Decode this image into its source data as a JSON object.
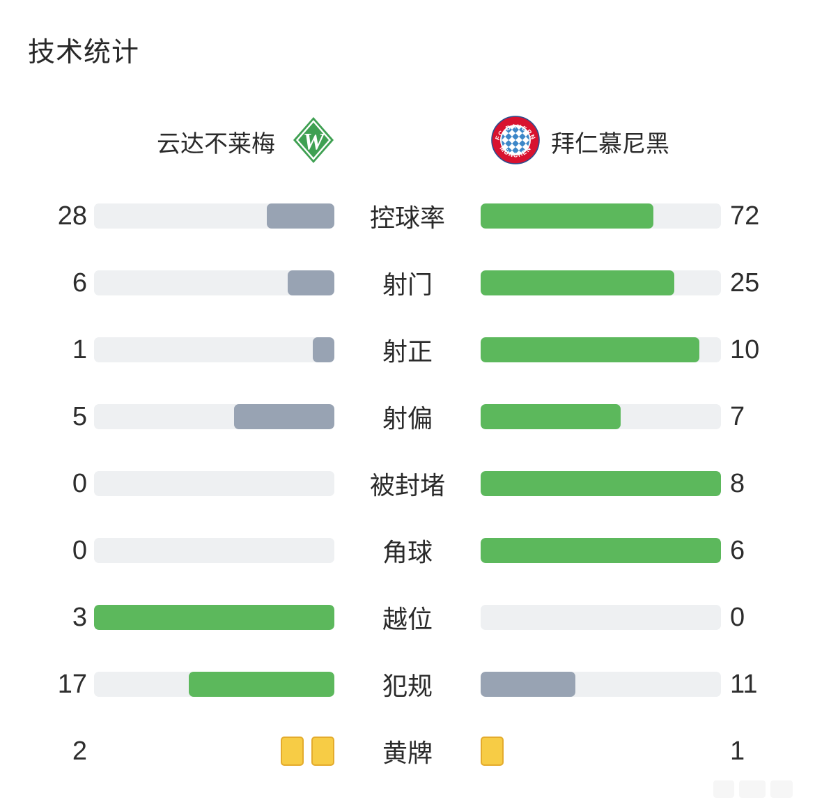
{
  "title": "技术统计",
  "teams": {
    "home": {
      "name": "云达不莱梅",
      "crest_letter": "W"
    },
    "away": {
      "name": "拜仁慕尼黑",
      "crest_text_top": "FC BAYERN",
      "crest_text_bottom": "MÜNCHEN"
    }
  },
  "colors": {
    "win_bar": "#5cb85c",
    "lose_bar": "#98a3b3",
    "track": "#eef0f2",
    "yellow_card": "#f7cc45",
    "yellow_card_border": "#e4ab2c",
    "werder_green": "#3fa052",
    "bayern_red": "#d8122f",
    "bayern_blue": "#3d87c8",
    "bayern_navy": "#2a4e8f"
  },
  "chart_data": {
    "type": "bar",
    "orientation": "horizontal-paired",
    "title": "技术统计",
    "categories": [
      "控球率",
      "射门",
      "射正",
      "射偏",
      "被封堵",
      "角球",
      "越位",
      "犯规",
      "黄牌"
    ],
    "series": [
      {
        "name": "云达不莱梅",
        "values": [
          28,
          6,
          1,
          5,
          0,
          0,
          3,
          17,
          2
        ]
      },
      {
        "name": "拜仁慕尼黑",
        "values": [
          72,
          25,
          10,
          7,
          8,
          6,
          0,
          11,
          1
        ]
      }
    ],
    "card_categories": [
      "黄牌"
    ],
    "legend_position": "top",
    "grid": false,
    "bar_rule": "each side fills value/(home+away) of its track; higher value is green, lower is gray-blue; yellow-card row drawn as card icons"
  }
}
